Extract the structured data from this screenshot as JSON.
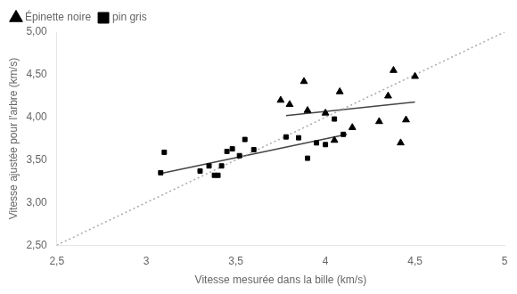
{
  "chart_data": {
    "type": "scatter",
    "xlabel": "Vitesse mesurée dans la bille (km/s)",
    "ylabel": "Vitesse ajustée pour l'arbre (km/s)",
    "xlim": [
      2.5,
      5.0
    ],
    "ylim": [
      2.5,
      5.0
    ],
    "xticks": [
      {
        "value": 2.5,
        "label": "2,5"
      },
      3,
      {
        "value": 3.5,
        "label": "3,5"
      },
      4,
      {
        "value": 4.5,
        "label": "4,5"
      },
      5
    ],
    "yticks": [
      {
        "value": 2.5,
        "label": "2,50"
      },
      {
        "value": 3.0,
        "label": "3,00"
      },
      {
        "value": 3.5,
        "label": "3,50"
      },
      {
        "value": 4.0,
        "label": "4,00"
      },
      {
        "value": 4.5,
        "label": "4,50"
      },
      {
        "value": 5.0,
        "label": "5,00"
      }
    ],
    "grid": false,
    "legend": "upper left",
    "series": [
      {
        "type": "line",
        "line_style": "dotted",
        "color": "#aaaaaa",
        "x": [
          2.5,
          5.0
        ],
        "values": [
          2.5,
          5.0
        ]
      },
      {
        "type": "line",
        "line_style": "solid",
        "color": "#444444",
        "x": [
          3.78,
          4.5
        ],
        "values": [
          4.02,
          4.18
        ]
      },
      {
        "type": "line",
        "line_style": "solid",
        "color": "#444444",
        "x": [
          3.08,
          4.12
        ],
        "values": [
          3.34,
          3.8
        ]
      },
      {
        "type": "scatter",
        "name": "Épinette noire",
        "marker": "triangle",
        "color": "#000000",
        "x": [
          3.75,
          3.8,
          3.88,
          3.9,
          4.0,
          4.05,
          4.08,
          4.15,
          4.3,
          4.35,
          4.38,
          4.42,
          4.45,
          4.5
        ],
        "values": [
          4.2,
          4.15,
          4.42,
          4.08,
          4.05,
          3.73,
          4.3,
          3.88,
          3.95,
          4.25,
          4.55,
          3.7,
          3.97,
          4.48
        ]
      },
      {
        "type": "scatter",
        "name": "pin gris",
        "marker": "square",
        "color": "#000000",
        "x": [
          3.08,
          3.1,
          3.3,
          3.35,
          3.38,
          3.4,
          3.42,
          3.45,
          3.48,
          3.52,
          3.55,
          3.6,
          3.78,
          3.85,
          3.9,
          3.95,
          4.0,
          4.05,
          4.1
        ],
        "values": [
          3.35,
          3.59,
          3.37,
          3.43,
          3.32,
          3.32,
          3.43,
          3.6,
          3.63,
          3.55,
          3.74,
          3.62,
          3.77,
          3.76,
          3.52,
          3.7,
          3.68,
          3.98,
          3.8
        ]
      }
    ]
  }
}
